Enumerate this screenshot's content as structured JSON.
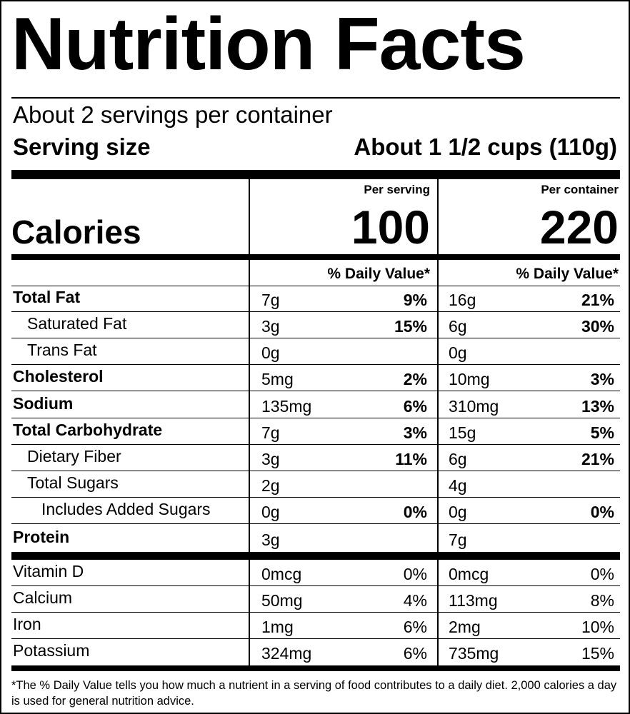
{
  "title": "Nutrition Facts",
  "servings_per_container": "About 2 servings per container",
  "serving_size": {
    "label": "Serving size",
    "value": "About 1 1/2 cups (110g)"
  },
  "calories": {
    "label": "Calories",
    "per_serving_header": "Per serving",
    "per_container_header": "Per container",
    "per_serving": "100",
    "per_container": "220"
  },
  "daily_value_header": "% Daily Value*",
  "nutrients": [
    {
      "name": "Total Fat",
      "serving_amount": "7g",
      "serving_dv": "9%",
      "container_amount": "16g",
      "container_dv": "21%"
    },
    {
      "name": "Saturated Fat",
      "serving_amount": "3g",
      "serving_dv": "15%",
      "container_amount": "6g",
      "container_dv": "30%"
    },
    {
      "name": "Trans Fat",
      "serving_amount": "0g",
      "serving_dv": "",
      "container_amount": "0g",
      "container_dv": ""
    },
    {
      "name": "Cholesterol",
      "serving_amount": "5mg",
      "serving_dv": "2%",
      "container_amount": "10mg",
      "container_dv": "3%"
    },
    {
      "name": "Sodium",
      "serving_amount": "135mg",
      "serving_dv": "6%",
      "container_amount": "310mg",
      "container_dv": "13%"
    },
    {
      "name": "Total Carbohydrate",
      "serving_amount": "7g",
      "serving_dv": "3%",
      "container_amount": "15g",
      "container_dv": "5%"
    },
    {
      "name": "Dietary Fiber",
      "serving_amount": "3g",
      "serving_dv": "11%",
      "container_amount": "6g",
      "container_dv": "21%"
    },
    {
      "name": "Total Sugars",
      "serving_amount": "2g",
      "serving_dv": "",
      "container_amount": "4g",
      "container_dv": ""
    },
    {
      "name": "Includes Added Sugars",
      "serving_amount": "0g",
      "serving_dv": "0%",
      "container_amount": "0g",
      "container_dv": "0%"
    },
    {
      "name": "Protein",
      "serving_amount": "3g",
      "serving_dv": "",
      "container_amount": "7g",
      "container_dv": ""
    }
  ],
  "vitamins": [
    {
      "name": "Vitamin D",
      "serving_amount": "0mcg",
      "serving_dv": "0%",
      "container_amount": "0mcg",
      "container_dv": "0%"
    },
    {
      "name": "Calcium",
      "serving_amount": "50mg",
      "serving_dv": "4%",
      "container_amount": "113mg",
      "container_dv": "8%"
    },
    {
      "name": "Iron",
      "serving_amount": "1mg",
      "serving_dv": "6%",
      "container_amount": "2mg",
      "container_dv": "10%"
    },
    {
      "name": "Potassium",
      "serving_amount": "324mg",
      "serving_dv": "6%",
      "container_amount": "735mg",
      "container_dv": "15%"
    }
  ],
  "footnote": "*The % Daily Value tells you how much a nutrient in a serving of food contributes to a daily diet. 2,000 calories a day is used for general nutrition advice."
}
